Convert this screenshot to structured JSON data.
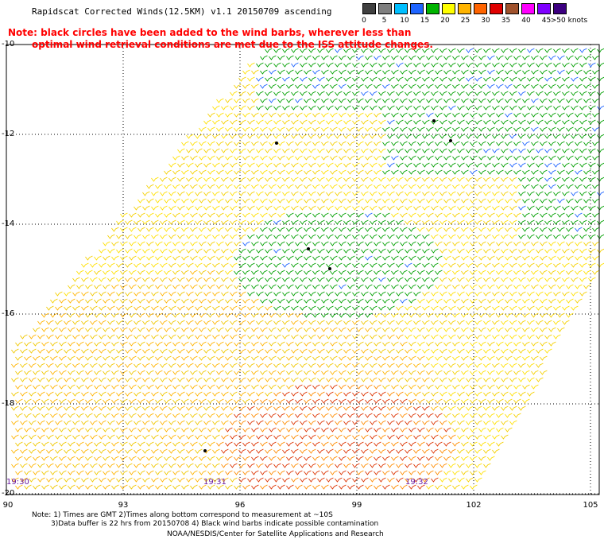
{
  "title": "Rapidscat Corrected Winds(12.5KM) v1.1 20150709 ascending",
  "note_line1": "Note: black circles have been added to the wind barbs, wherever less than",
  "note_line2": "optimal wind retrieval conditions are met due to the ISS attitude changes.",
  "legend": {
    "labels": [
      "0",
      "5",
      "10",
      "15",
      "20",
      "25",
      "30",
      "35",
      "40",
      "45",
      ">50 knots"
    ],
    "colors": [
      "#404040",
      "#7f7f7f",
      "#00bfff",
      "#1e64ff",
      "#00b400",
      "#ffff00",
      "#ffb400",
      "#ff6400",
      "#e00000",
      "#a0522d",
      "#ff00ff",
      "#7f00ff",
      "#3c0080"
    ]
  },
  "axes": {
    "lat_labels": [
      "-10",
      "-12",
      "-14",
      "-16",
      "-18",
      "-20"
    ],
    "lon_labels": [
      "90",
      "93",
      "96",
      "99",
      "102",
      "105"
    ],
    "lat_values": [
      -10,
      -12,
      -14,
      -16,
      -18,
      -20
    ],
    "lon_values": [
      90,
      93,
      96,
      99,
      102,
      105
    ]
  },
  "times": [
    "19:30",
    "19:31",
    "19:32"
  ],
  "footer": {
    "line1": "Note: 1) Times are GMT 2)Times along bottom correspond to measurement at ~10S",
    "line2": "3)Data buffer is 22 hrs from 20150708 4) Black wind barbs indicate possible contamination",
    "line3": "NOAA/NESDIS/Center for Satellite Applications and Research"
  }
}
